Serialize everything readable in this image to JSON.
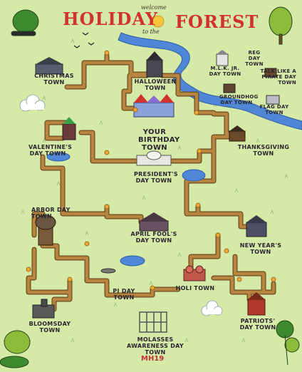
{
  "title": {
    "left": "HOLIDAY",
    "right": "FOREST",
    "welcome_top": "welcome",
    "welcome_bottom": "to the"
  },
  "signature": "MH19",
  "towns": {
    "christmas": "CHRISTMAS TOWN",
    "halloween": "HALLOWEEN TOWN",
    "birthday": "YOUR BIRTHDAY TOWN",
    "valentines": "VALENTINE'S DAY TOWN",
    "thanksgiving": "THANKSGIVING TOWN",
    "presidents": "PRESIDENT'S DAY TOWN",
    "arbor": "ARBOR DAY TOWN",
    "april_fools": "APRIL FOOL'S DAY TOWN",
    "new_years": "NEW YEAR'S TOWN",
    "pi_day": "PI DAY TOWN",
    "holi": "HOLI TOWN",
    "bloomsday": "BLOOMSDAY TOWN",
    "patriots": "PATRIOTS' DAY TOWN",
    "molasses": "MOLASSES AWARENESS DAY TOWN",
    "reg_day": "REG DAY TOWN",
    "mlk_jr": "M.L.K. JR. DAY TOWN",
    "pirate": "TALK LIKE A PIRATE DAY TOWN",
    "groundhog": "GROUNDHOG DAY TOWN",
    "flag_day": "FLAG DAY TOWN"
  },
  "colors": {
    "background": "#d6eaa8",
    "path": "#a2743a",
    "path_border": "#6b4a24",
    "river": "#4f86d6",
    "title_red": "#d2322c",
    "tree_green": "#3e8a2e",
    "tree_light": "#8cbd3a"
  }
}
